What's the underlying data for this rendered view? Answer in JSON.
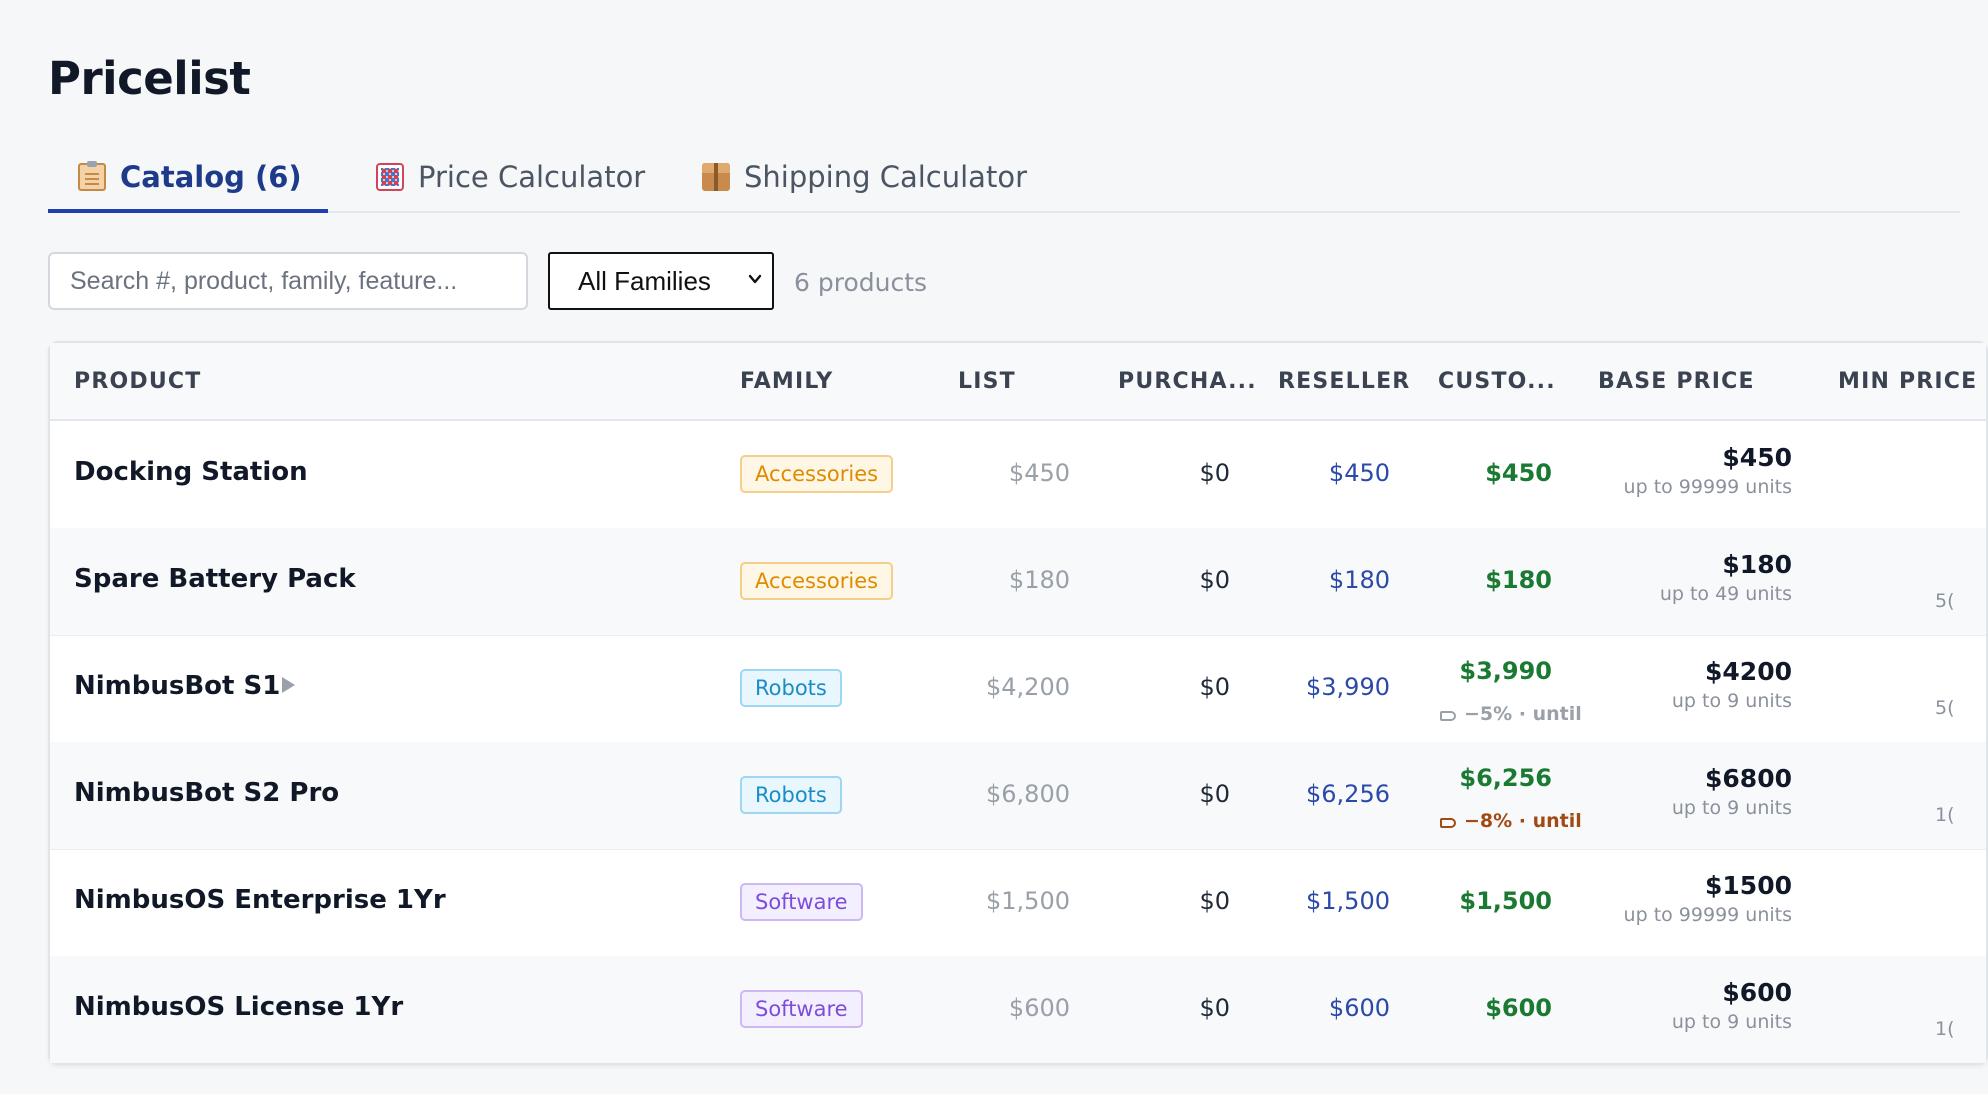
{
  "page": {
    "title": "Pricelist"
  },
  "tabs": [
    {
      "label": "Catalog (6)",
      "icon": "clipboard-icon",
      "active": true
    },
    {
      "label": "Price Calculator",
      "icon": "abacus-icon",
      "active": false
    },
    {
      "label": "Shipping Calculator",
      "icon": "package-icon",
      "active": false
    }
  ],
  "toolbar": {
    "search_placeholder": "Search #, product, family, feature...",
    "search_value": "",
    "family_filter": "All Families",
    "count_text": "6 products"
  },
  "table": {
    "headers": {
      "product": "PRODUCT",
      "family": "FAMILY",
      "list": "LIST",
      "purchase": "PURCHA...",
      "reseller": "RESELLER",
      "customer": "CUSTO...",
      "base": "BASE PRICE",
      "min": "MIN PRICE"
    },
    "rows": [
      {
        "product": "Docking Station",
        "family": "Accessories",
        "list": "$450",
        "purchase": "$0",
        "reseller": "$450",
        "customer": "$450",
        "discount": "",
        "base_price": "$450",
        "base_units": "up to 99999 units",
        "min_partial": ""
      },
      {
        "product": "Spare Battery Pack",
        "family": "Accessories",
        "list": "$180",
        "purchase": "$0",
        "reseller": "$180",
        "customer": "$180",
        "discount": "",
        "base_price": "$180",
        "base_units": "up to 49 units",
        "min_partial": "5("
      },
      {
        "product": "NimbusBot S1",
        "family": "Robots",
        "list": "$4,200",
        "purchase": "$0",
        "reseller": "$3,990",
        "customer": "$3,990",
        "discount": "−5% · until",
        "base_price": "$4200",
        "base_units": "up to 9 units",
        "min_partial": "5("
      },
      {
        "product": "NimbusBot S2 Pro",
        "family": "Robots",
        "list": "$6,800",
        "purchase": "$0",
        "reseller": "$6,256",
        "customer": "$6,256",
        "discount": "−8% · until",
        "base_price": "$6800",
        "base_units": "up to 9 units",
        "min_partial": "1("
      },
      {
        "product": "NimbusOS Enterprise 1Yr",
        "family": "Software",
        "list": "$1,500",
        "purchase": "$0",
        "reseller": "$1,500",
        "customer": "$1,500",
        "discount": "",
        "base_price": "$1500",
        "base_units": "up to 99999 units",
        "min_partial": ""
      },
      {
        "product": "NimbusOS License 1Yr",
        "family": "Software",
        "list": "$600",
        "purchase": "$0",
        "reseller": "$600",
        "customer": "$600",
        "discount": "",
        "base_price": "$600",
        "base_units": "up to 9 units",
        "min_partial": "1("
      }
    ]
  },
  "colors": {
    "accent": "#1e40af",
    "customer_price": "#1b7a32",
    "reseller_price": "#2b4aa8",
    "accessories": "#e08a00",
    "robots": "#1a8cc7",
    "software": "#7c4ddb"
  }
}
